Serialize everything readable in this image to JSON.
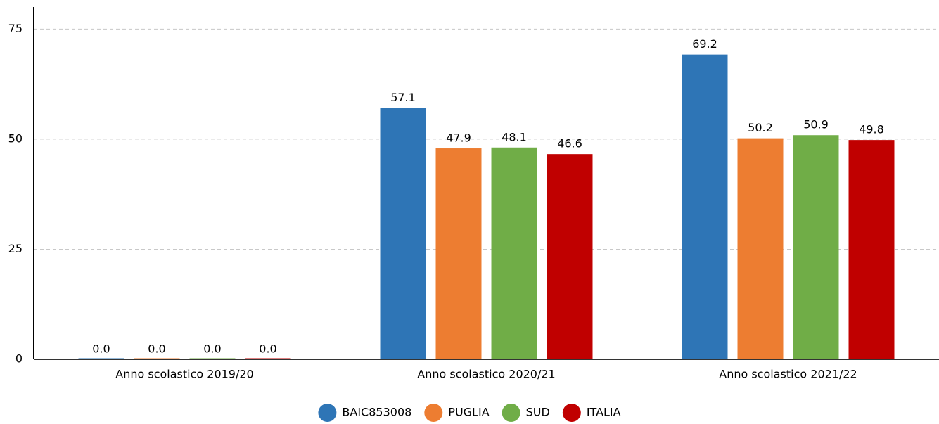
{
  "chart_data": {
    "type": "bar",
    "categories": [
      "Anno scolastico 2019/20",
      "Anno scolastico 2020/21",
      "Anno scolastico 2021/22"
    ],
    "series": [
      {
        "name": "BAIC853008",
        "color": "#2e75b6",
        "values": [
          0,
          57.1,
          69.2
        ],
        "value_labels": [
          "0.0",
          "57.1",
          "69.2"
        ]
      },
      {
        "name": "PUGLIA",
        "color": "#ed7d31",
        "values": [
          0,
          47.9,
          50.2
        ],
        "value_labels": [
          "0.0",
          "47.9",
          "50.2"
        ]
      },
      {
        "name": "SUD",
        "color": "#70ad47",
        "values": [
          0,
          48.1,
          50.9
        ],
        "value_labels": [
          "0.0",
          "48.1",
          "50.9"
        ]
      },
      {
        "name": "ITALIA",
        "color": "#c00000",
        "values": [
          0,
          46.6,
          49.8
        ],
        "value_labels": [
          "0.0",
          "46.6",
          "49.8"
        ]
      }
    ],
    "ylim": [
      0,
      80
    ],
    "yticks": [
      0,
      25,
      50,
      75
    ],
    "grid": true,
    "legend": "bottom"
  }
}
